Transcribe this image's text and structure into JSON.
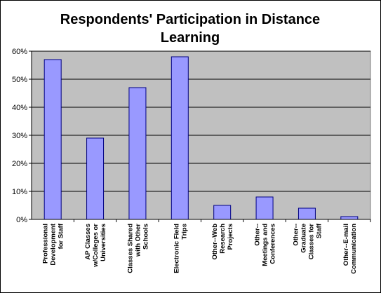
{
  "chart_data": {
    "type": "bar",
    "title": "Respondents' Participation in Distance Learning",
    "xlabel": "",
    "ylabel": "",
    "ylim": [
      0,
      60
    ],
    "y_ticks": [
      "0%",
      "10%",
      "20%",
      "30%",
      "40%",
      "50%",
      "60%"
    ],
    "grid": true,
    "legend": "none",
    "categories": [
      [
        "Professional",
        "Development",
        "for Staff"
      ],
      [
        "AP Classes",
        "w/Colleges or",
        "Universities"
      ],
      [
        "Classes Shared",
        "with Other",
        "Schools"
      ],
      [
        "Electronic Field",
        "Trips"
      ],
      [
        "Other--Web",
        "Research",
        "Projects"
      ],
      [
        "Other--",
        "Meetings and",
        "Conferences"
      ],
      [
        "Other--",
        "Graduate",
        "Classes for",
        "Staff"
      ],
      [
        "Other--E-mail",
        "Communication"
      ]
    ],
    "values": [
      57,
      29,
      47,
      58,
      5,
      8,
      4,
      1
    ],
    "colors": {
      "bar_fill": "#9999ff",
      "bar_stroke": "#000080",
      "plot_background": "#c0c0c0",
      "gridline": "#000000"
    }
  }
}
